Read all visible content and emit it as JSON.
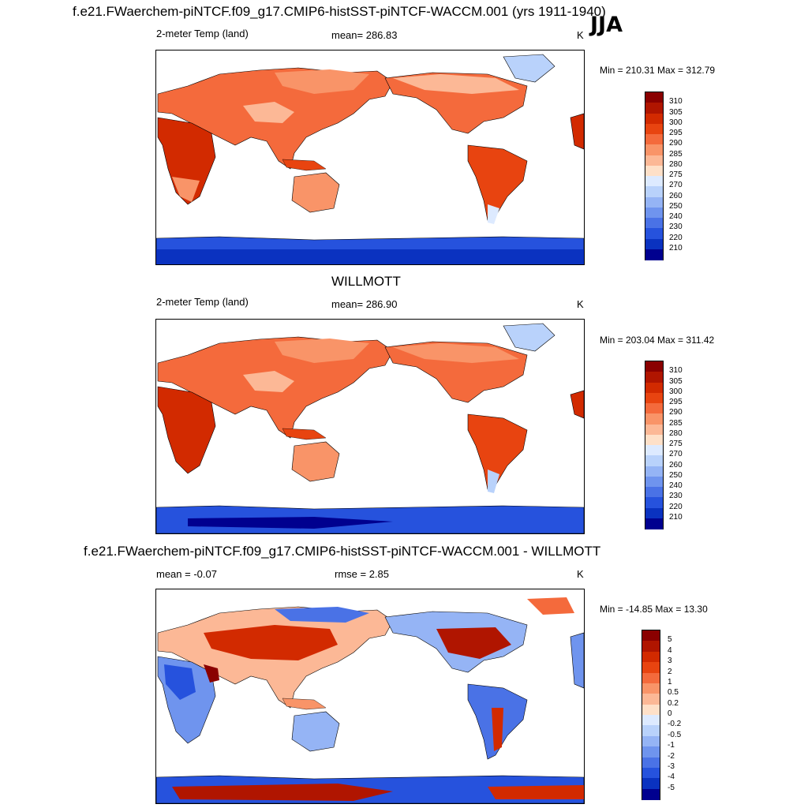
{
  "season": "JJA",
  "panels": [
    {
      "id": "model",
      "title": "f.e21.FWaerchem-piNTCF.f09_g17.CMIP6-histSST-piNTCF-WACCM.001 (yrs 1911-1940)",
      "left_label": "2-meter Temp (land)",
      "center_label": "mean= 286.83",
      "units": "K",
      "minmax": "Min = 210.31 Max = 312.79"
    },
    {
      "id": "obs",
      "title": "WILLMOTT",
      "left_label": "2-meter Temp (land)",
      "center_label": "mean= 286.90",
      "units": "K",
      "minmax": "Min = 203.04 Max = 311.42"
    },
    {
      "id": "diff",
      "title": "f.e21.FWaerchem-piNTCF.f09_g17.CMIP6-histSST-piNTCF-WACCM.001 - WILLMOTT",
      "left_label": "mean =  -0.07",
      "center_label": "rmse =   2.85",
      "units": "K",
      "minmax": "Min = -14.85 Max =  13.30"
    }
  ],
  "colorbars": {
    "temp": {
      "labels": [
        "310",
        "305",
        "300",
        "295",
        "290",
        "285",
        "280",
        "275",
        "270",
        "260",
        "250",
        "240",
        "230",
        "220",
        "210"
      ],
      "colors": [
        "#8a0000",
        "#b01500",
        "#d22a00",
        "#e84410",
        "#f46a3c",
        "#f99468",
        "#fcb896",
        "#fee0c8",
        "#ddeaff",
        "#b9d2fb",
        "#95b4f5",
        "#6f94ee",
        "#4a72e6",
        "#2652dd",
        "#0a32c0",
        "#00008f"
      ]
    },
    "diff": {
      "labels": [
        "5",
        "4",
        "3",
        "2",
        "1",
        "0.5",
        "0.2",
        "0",
        "-0.2",
        "-0.5",
        "-1",
        "-2",
        "-3",
        "-4",
        "-5"
      ],
      "colors": [
        "#8a0000",
        "#b01500",
        "#d22a00",
        "#e84410",
        "#f46a3c",
        "#f99468",
        "#fcb896",
        "#fee0c8",
        "#ddeaff",
        "#b9d2fb",
        "#95b4f5",
        "#6f94ee",
        "#4a72e6",
        "#2652dd",
        "#0a32c0",
        "#00008f"
      ]
    }
  }
}
